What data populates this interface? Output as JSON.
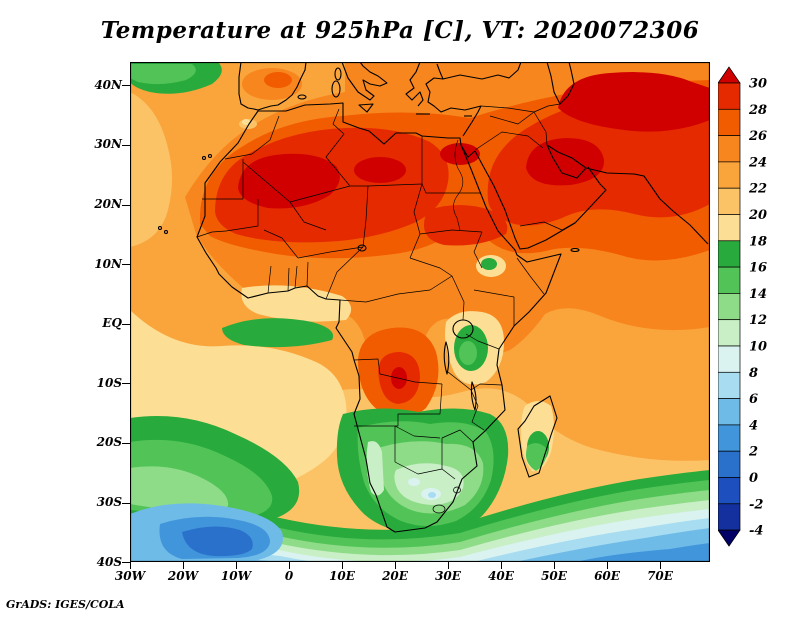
{
  "title": "Temperature at 925hPa [C], VT: 2020072306",
  "credit": "GrADS: IGES/COLA",
  "chart_data": {
    "type": "heatmap",
    "title": "Temperature at 925hPa [C], VT: 2020072306",
    "variable": "Temperature",
    "pressure_level": "925hPa",
    "units": "C",
    "valid_time": "2020072306",
    "region": "Africa, Arabian Peninsula, southern Europe and surrounding oceans",
    "lon_range": [
      "30W",
      "79E"
    ],
    "lat_range": [
      "40S",
      "44N"
    ],
    "grid": false,
    "x_axis": {
      "ticks": [
        "30W",
        "20W",
        "10W",
        "0",
        "10E",
        "20E",
        "30E",
        "40E",
        "50E",
        "60E",
        "70E"
      ]
    },
    "y_axis": {
      "ticks": [
        "40N",
        "30N",
        "20N",
        "10N",
        "EQ",
        "10S",
        "20S",
        "30S",
        "40S"
      ]
    },
    "colorbar": {
      "position": "right",
      "orientation": "vertical",
      "tick_values": [
        30,
        28,
        26,
        24,
        22,
        20,
        18,
        16,
        14,
        12,
        10,
        8,
        6,
        4,
        2,
        0,
        -2,
        -4
      ],
      "band_colors_top_to_bottom": [
        "#d10000",
        "#e62a00",
        "#f25c00",
        "#f8861e",
        "#faa43c",
        "#fcc366",
        "#fcdf94",
        "#28ab3c",
        "#52c457",
        "#8edb88",
        "#c8efc5",
        "#daf3f0",
        "#a8dcf0",
        "#6fbbe8",
        "#4195da",
        "#2a71cc",
        "#1d4fbe",
        "#14309e",
        "#000066"
      ]
    },
    "level_colors": {
      ">30": "#d10000",
      "28-30": "#e62a00",
      "26-28": "#f25c00",
      "24-26": "#f8861e",
      "22-24": "#faa43c",
      "20-22": "#fcc366",
      "18-20": "#fcdf94",
      "16-18": "#28ab3c",
      "14-16": "#52c457",
      "12-14": "#8edb88",
      "10-12": "#c8efc5",
      "8-10": "#daf3f0",
      "6-8": "#a8dcf0",
      "4-6": "#6fbbe8",
      "2-4": "#4195da",
      "0-2": "#2a71cc",
      "-2-0": "#1d4fbe",
      "-4--2": "#14309e",
      "<-4": "#000066"
    },
    "features": [
      "Hot cores above 30C over the western Sahara, Egypt, Arabian Peninsula and Middle East",
      "Warm 24-28C across the Sahel, Congo basin, Mediterranean and northern Indian Ocean",
      "Cool 10-16C over the southern Africa interior and subtropical south Atlantic",
      "Cold 0-8C Southern Ocean bands along 33S-40S with a deep blue pool southwest of Africa"
    ]
  }
}
